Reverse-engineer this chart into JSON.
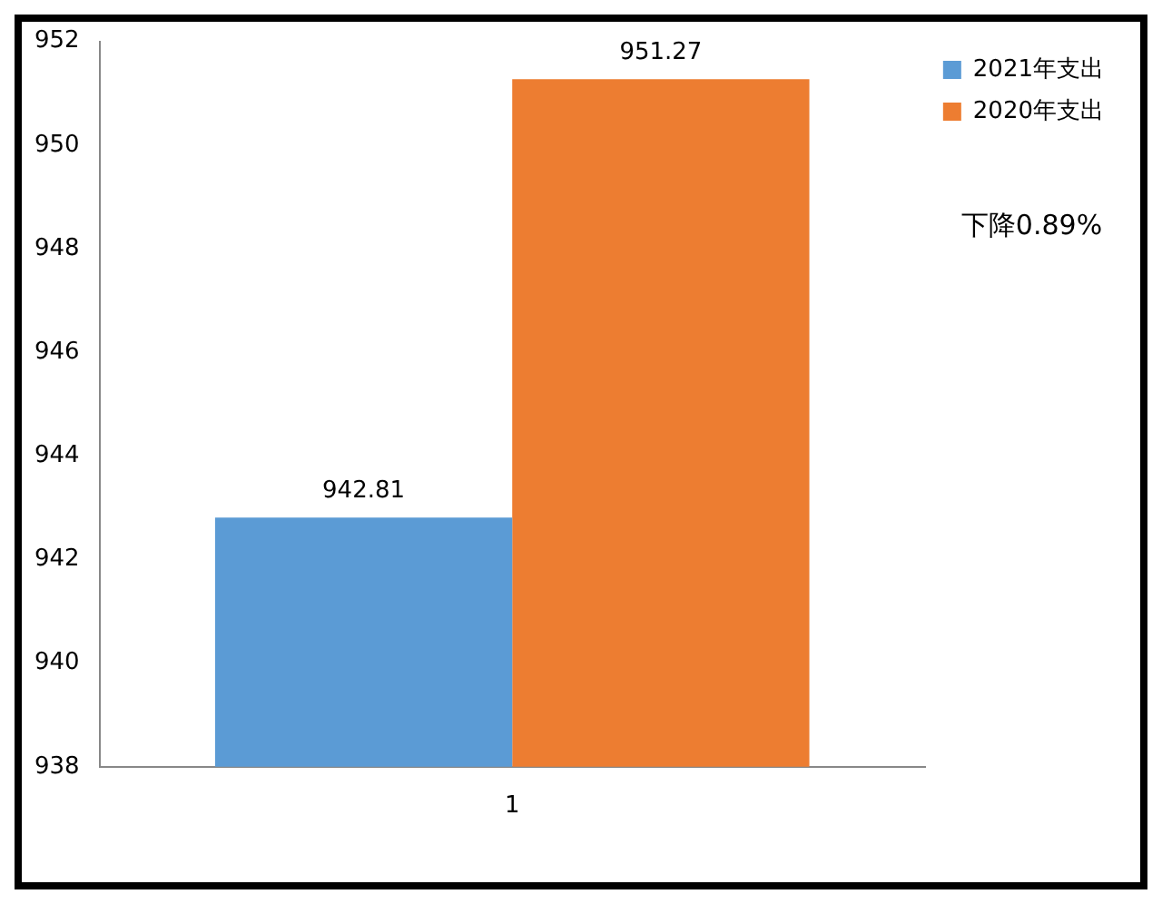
{
  "chart_data": {
    "type": "bar",
    "categories": [
      "1"
    ],
    "series": [
      {
        "name": "2021年支出",
        "color": "#5b9bd5",
        "values": [
          942.81
        ]
      },
      {
        "name": "2020年支出",
        "color": "#ed7d31",
        "values": [
          951.27
        ]
      }
    ],
    "ylim": [
      938,
      952
    ],
    "yticks": [
      938,
      940,
      942,
      944,
      946,
      948,
      950,
      952
    ],
    "grid": false,
    "legend": "top right",
    "data_labels": true,
    "annotations": [
      "下降0.89%"
    ]
  }
}
